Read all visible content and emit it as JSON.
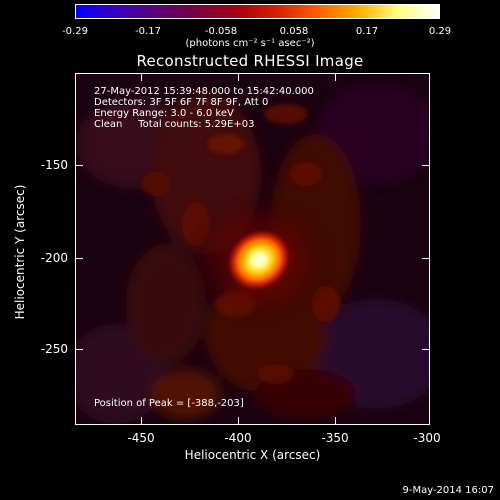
{
  "colorbar": {
    "ticks": [
      "-0.29",
      "-0.17",
      "-0.058",
      "0.058",
      "0.17",
      "0.29"
    ],
    "label": "(photons cm⁻² s⁻¹ asec⁻²)",
    "colors": [
      "#0000ff",
      "#3a00c0",
      "#5a007a",
      "#7a0040",
      "#a80010",
      "#d82000",
      "#ff6000",
      "#ffb000",
      "#ffff80",
      "#ffffff"
    ]
  },
  "title": "Reconstructed RHESSI Image",
  "annotations": {
    "time": "27-May-2012 15:39:48.000 to 15:42:40.000",
    "detectors": "Detectors: 3F 5F 6F 7F 8F 9F, Att 0",
    "energy": "Energy Range: 3.0 - 6.0 keV",
    "method": "Clean     Total counts: 5.29E+03",
    "peak": "Position of Peak = [-388,-203]"
  },
  "axes": {
    "xlabel": "Heliocentric X (arcsec)",
    "ylabel": "Heliocentric Y (arcsec)",
    "xticks": [
      "-450",
      "-400",
      "-350",
      "-300"
    ],
    "yticks": [
      "-150",
      "-200",
      "-250"
    ]
  },
  "footer": {
    "date": "9-May-2014 16:07"
  }
}
